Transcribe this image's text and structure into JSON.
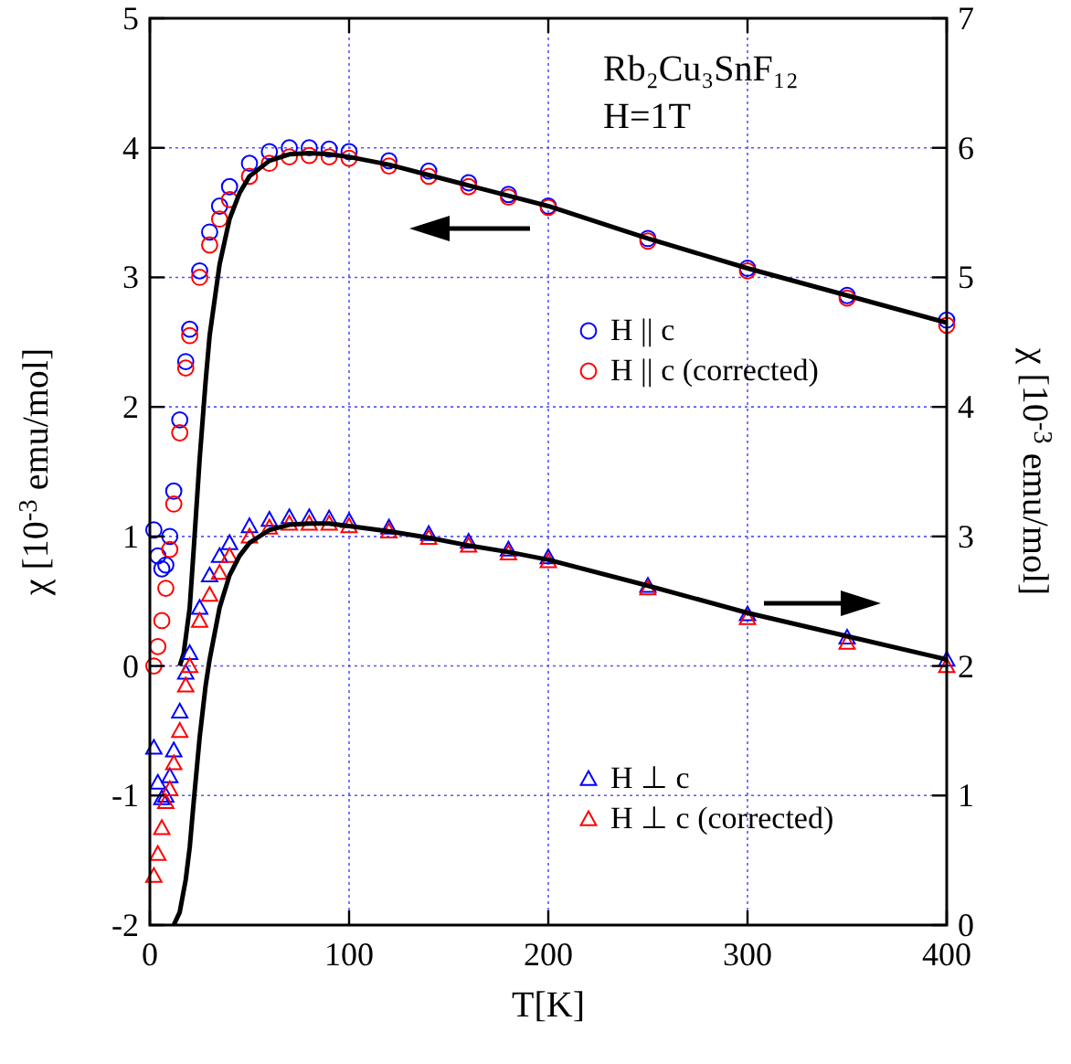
{
  "chart_data": {
    "type": "scatter",
    "xlabel": "T[K]",
    "ylabel": "χ [10$^{-3}$ emu/mol]",
    "y2label": "χ [10$^{-3}$ emu/mol]",
    "annotations": [
      "Rb₂Cu₃SnF₁₂",
      "H=1T"
    ],
    "xlim": [
      0,
      400
    ],
    "xticks": [
      0,
      100,
      200,
      300,
      400
    ],
    "ylim": [
      -2,
      5
    ],
    "yticks": [
      -2,
      -1,
      0,
      1,
      2,
      3,
      4,
      5
    ],
    "y2lim": [
      0,
      7
    ],
    "y2ticks": [
      0,
      1,
      2,
      3,
      4,
      5,
      6,
      7
    ],
    "grid": true,
    "legend": "right",
    "series": [
      {
        "name": "H || c",
        "color": "#0000ff",
        "marker": "circle",
        "x": [
          2,
          4,
          6,
          8,
          10,
          12,
          15,
          18,
          20,
          25,
          30,
          35,
          40,
          50,
          60,
          70,
          80,
          90,
          100,
          120,
          140,
          160,
          180,
          200,
          250,
          300,
          350,
          400
        ],
        "values": [
          1.05,
          0.85,
          0.75,
          0.78,
          1.0,
          1.35,
          1.9,
          2.35,
          2.6,
          3.05,
          3.35,
          3.55,
          3.7,
          3.88,
          3.97,
          4.0,
          4.0,
          3.99,
          3.97,
          3.9,
          3.82,
          3.73,
          3.64,
          3.55,
          3.3,
          3.07,
          2.86,
          2.67
        ]
      },
      {
        "name": "H || c (corrected)",
        "color": "#ff0000",
        "marker": "circle",
        "x": [
          2,
          4,
          6,
          8,
          10,
          12,
          15,
          18,
          20,
          25,
          30,
          35,
          40,
          50,
          60,
          70,
          80,
          90,
          100,
          120,
          140,
          160,
          180,
          200,
          250,
          300,
          350,
          400
        ],
        "values": [
          0.0,
          0.15,
          0.35,
          0.6,
          0.9,
          1.25,
          1.8,
          2.3,
          2.55,
          3.0,
          3.25,
          3.45,
          3.6,
          3.78,
          3.88,
          3.93,
          3.94,
          3.93,
          3.92,
          3.86,
          3.78,
          3.7,
          3.62,
          3.54,
          3.28,
          3.05,
          2.84,
          2.63
        ]
      },
      {
        "color": "#000000",
        "type": "line",
        "x": [
          15,
          17,
          20,
          22,
          25,
          28,
          30,
          35,
          40,
          45,
          50,
          60,
          70,
          80,
          90,
          100,
          120,
          140,
          160,
          180,
          200,
          250,
          300,
          350,
          400
        ],
        "values": [
          0,
          0.1,
          0.45,
          0.9,
          1.6,
          2.2,
          2.55,
          3.1,
          3.45,
          3.65,
          3.78,
          3.9,
          3.95,
          3.96,
          3.95,
          3.93,
          3.87,
          3.79,
          3.71,
          3.63,
          3.55,
          3.3,
          3.07,
          2.86,
          2.65
        ]
      },
      {
        "name": "H ⊥ c",
        "color": "#0000ff",
        "marker": "triangle",
        "axis": "y2",
        "x": [
          2,
          4,
          6,
          8,
          10,
          12,
          15,
          18,
          20,
          25,
          30,
          35,
          40,
          50,
          60,
          70,
          80,
          90,
          100,
          120,
          140,
          160,
          180,
          200,
          250,
          300,
          350,
          400
        ],
        "values": [
          1.37,
          1.1,
          0.98,
          1.0,
          1.15,
          1.35,
          1.65,
          1.95,
          2.1,
          2.45,
          2.7,
          2.85,
          2.95,
          3.08,
          3.13,
          3.15,
          3.15,
          3.14,
          3.12,
          3.07,
          3.02,
          2.96,
          2.9,
          2.84,
          2.62,
          2.4,
          2.22,
          2.05
        ]
      },
      {
        "name": "H ⊥ c (corrected)",
        "color": "#ff0000",
        "marker": "triangle",
        "axis": "y2",
        "x": [
          2,
          4,
          6,
          8,
          10,
          12,
          15,
          18,
          20,
          25,
          30,
          35,
          40,
          50,
          60,
          70,
          80,
          90,
          100,
          120,
          140,
          160,
          180,
          200,
          250,
          300,
          350,
          400
        ],
        "values": [
          0.38,
          0.55,
          0.75,
          0.95,
          1.05,
          1.25,
          1.5,
          1.85,
          2.0,
          2.35,
          2.55,
          2.72,
          2.85,
          3.0,
          3.07,
          3.1,
          3.1,
          3.1,
          3.08,
          3.04,
          2.99,
          2.93,
          2.87,
          2.81,
          2.6,
          2.37,
          2.18,
          2.0
        ]
      },
      {
        "color": "#000000",
        "type": "line",
        "axis": "y2",
        "x": [
          12,
          15,
          18,
          20,
          22,
          25,
          28,
          30,
          35,
          40,
          45,
          50,
          60,
          70,
          80,
          90,
          100,
          120,
          140,
          160,
          180,
          200,
          250,
          300,
          350,
          400
        ],
        "values": [
          0,
          0.1,
          0.35,
          0.6,
          0.95,
          1.45,
          1.85,
          2.05,
          2.45,
          2.7,
          2.85,
          2.95,
          3.05,
          3.09,
          3.1,
          3.1,
          3.08,
          3.04,
          2.99,
          2.93,
          2.88,
          2.82,
          2.62,
          2.41,
          2.23,
          2.05
        ]
      }
    ]
  }
}
